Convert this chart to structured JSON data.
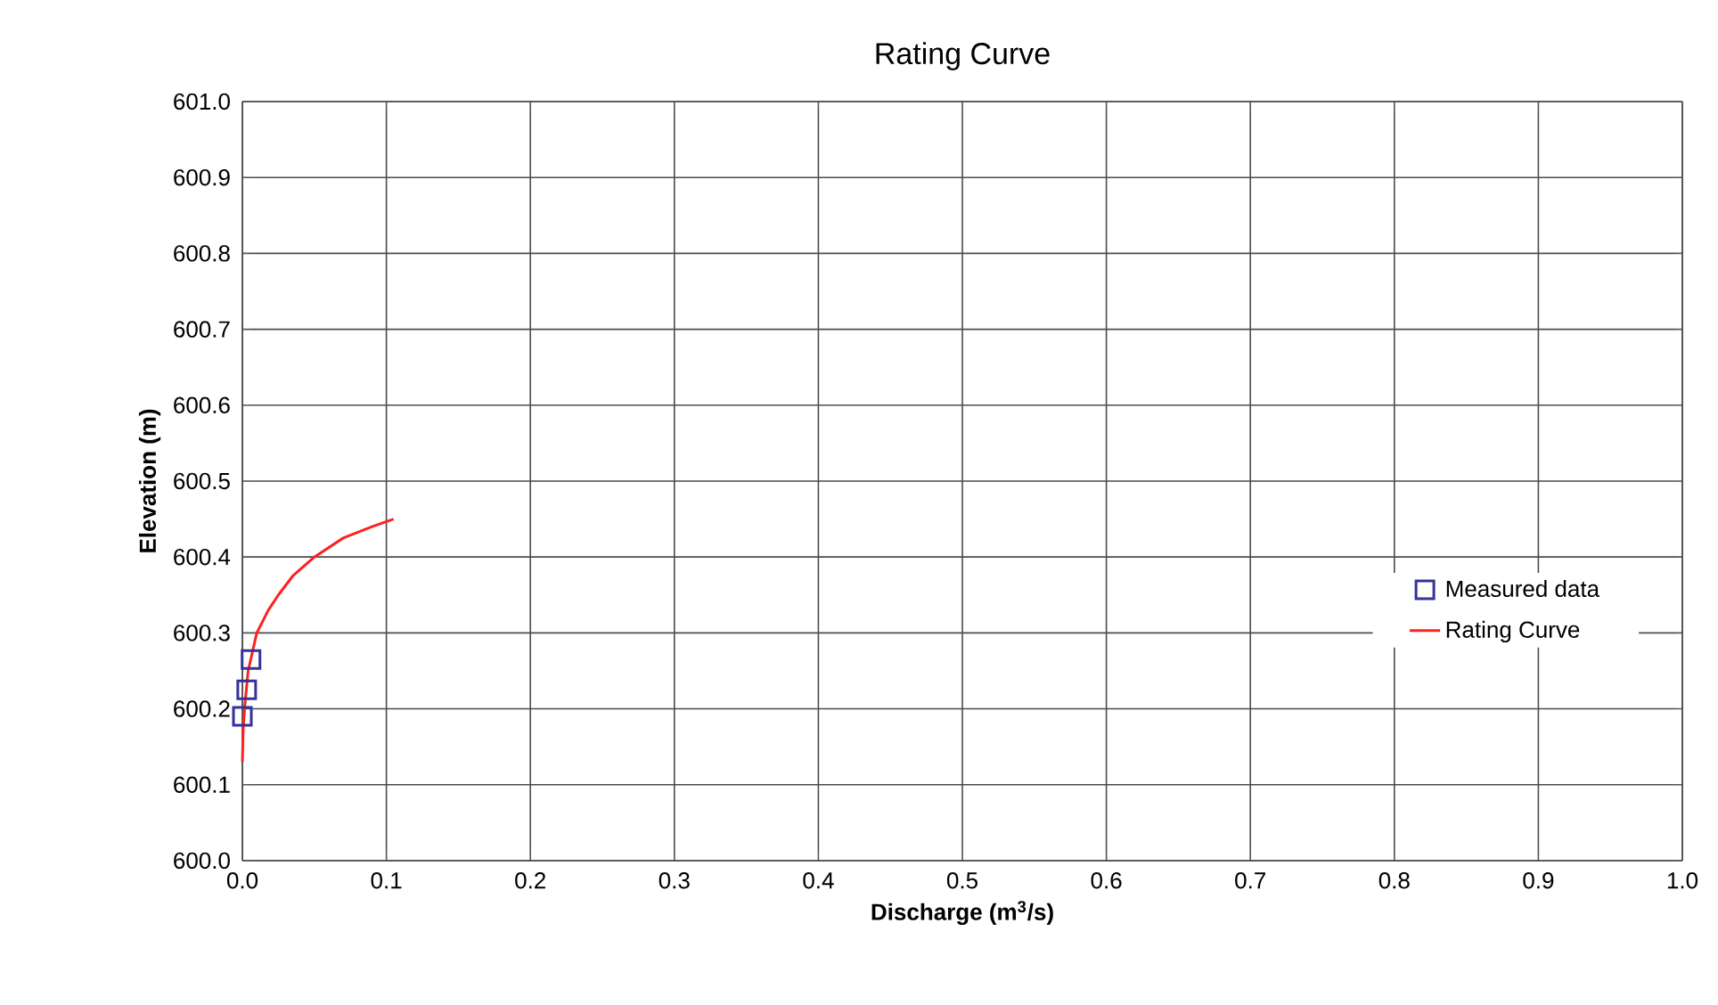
{
  "chart_data": {
    "type": "scatter",
    "title": "Rating Curve",
    "xlabel": "Discharge (m$^{3}$/s)",
    "ylabel": "Elevation (m)",
    "xlim": [
      0,
      1
    ],
    "ylim": [
      600,
      601
    ],
    "xticks": [
      {
        "value": 0,
        "label": "0.0"
      },
      0.1,
      0.2,
      0.3,
      0.4,
      0.5,
      0.6,
      0.7,
      0.8,
      0.9,
      {
        "value": 1,
        "label": "1.0"
      }
    ],
    "yticks": [
      {
        "value": 600,
        "label": "600.0"
      },
      600.1,
      600.2,
      600.3,
      600.4,
      600.5,
      600.6,
      600.7,
      600.8,
      600.9,
      {
        "value": 601,
        "label": "601.0"
      }
    ],
    "grid": true,
    "legend": "right",
    "series": [
      {
        "name": "Measured data",
        "marker": "square",
        "color": "#333399",
        "x": [
          0.0,
          0.003,
          0.006
        ],
        "values": [
          600.19,
          600.225,
          600.265
        ]
      },
      {
        "name": "Rating Curve",
        "type": "line",
        "marker": "none",
        "color": "#ff2020",
        "x": [
          0.0,
          0.0005,
          0.0015,
          0.004,
          0.01,
          0.018,
          0.025,
          0.035,
          0.05,
          0.07,
          0.09,
          0.105
        ],
        "values": [
          600.13,
          600.17,
          600.2,
          600.25,
          600.3,
          600.33,
          600.35,
          600.375,
          600.4,
          600.425,
          600.44,
          600.45
        ]
      }
    ]
  }
}
